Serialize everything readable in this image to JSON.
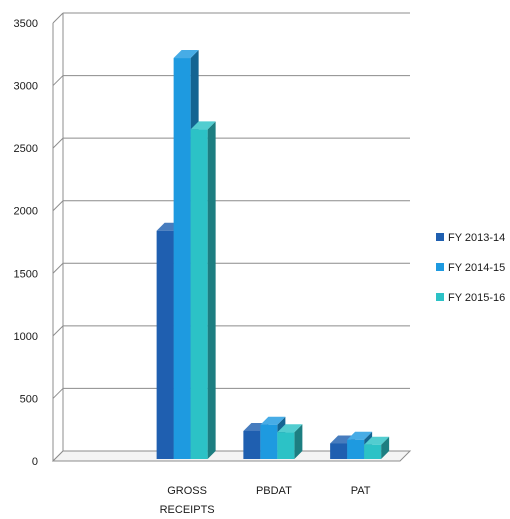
{
  "chart_data": {
    "type": "bar",
    "categories": [
      "",
      "GROSS RECEIPTS",
      "PBDAT",
      "PAT"
    ],
    "series": [
      {
        "name": "FY 2013-14",
        "values": [
          null,
          1840,
          240,
          140
        ],
        "color": "#1f5fb0"
      },
      {
        "name": "FY 2014-15",
        "values": [
          null,
          3220,
          290,
          170
        ],
        "color": "#1e9ae0"
      },
      {
        "name": "FY 2015-16",
        "values": [
          null,
          2650,
          230,
          130
        ],
        "color": "#2cc2c6"
      }
    ],
    "y_ticks": [
      "0",
      "500",
      "1000",
      "1500",
      "2000",
      "2500",
      "3000",
      "3500"
    ],
    "ylim": [
      0,
      3500
    ],
    "grid": true,
    "legend_position": "right",
    "title": "",
    "xlabel": "",
    "ylabel": ""
  }
}
